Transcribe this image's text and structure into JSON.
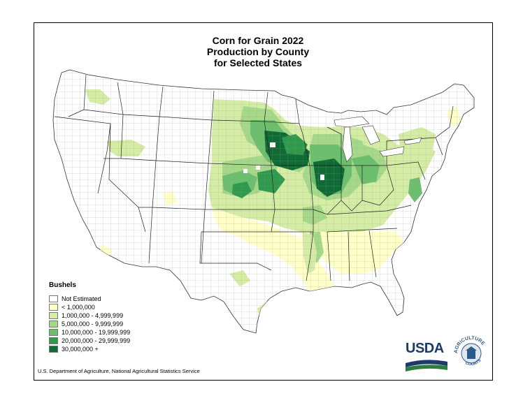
{
  "title": {
    "line1": "Corn for Grain 2022",
    "line2": "Production by County",
    "line3": "for Selected States"
  },
  "legend": {
    "title": "Bushels",
    "items": [
      {
        "label": "Not Estimated",
        "color": "#ffffff"
      },
      {
        "label": "< 1,000,000",
        "color": "#ffffc8"
      },
      {
        "label": "1,000,000 - 4,999,999",
        "color": "#d4eca4"
      },
      {
        "label": "5,000,000 -  9,999,999",
        "color": "#a6d88a"
      },
      {
        "label": "10,000,000 - 19,999,999",
        "color": "#6bbf6d"
      },
      {
        "label": "20,000,000 - 29,999,999",
        "color": "#2f9a4c"
      },
      {
        "label": "30,000,000 +",
        "color": "#0e6b33"
      }
    ]
  },
  "source": "U.S. Department of Agriculture, National Agricultural Statistics Service",
  "logos": {
    "usda": "USDA",
    "seal_top": "AGRICULTURE",
    "seal_bottom": "COUNTS"
  },
  "colors": {
    "usda_blue": "#1d3b6a",
    "usda_green": "#2e7d3c",
    "seal_blue": "#2c5a8a"
  }
}
